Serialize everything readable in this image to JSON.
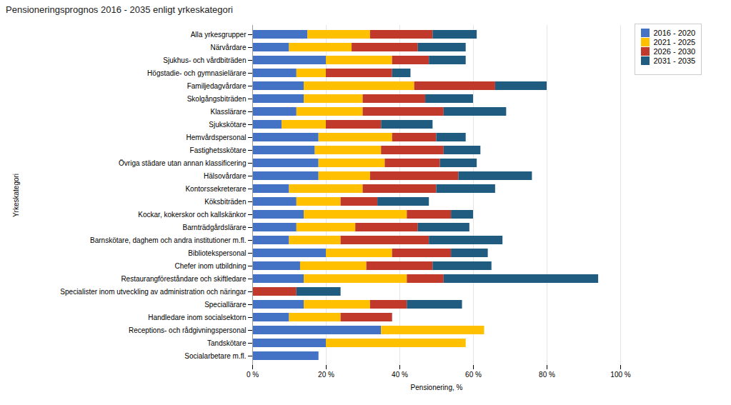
{
  "chart_data": {
    "type": "bar",
    "orientation": "horizontal",
    "stacked": true,
    "title": "Pensioneringsprognos 2016 - 2035 enligt yrkeskategori",
    "xlabel": "Pensionering, %",
    "ylabel": "Yrkeskategori",
    "categories": [
      "Alla yrkesgrupper",
      "Närvårdare",
      "Sjukhus- och vårdbiträden",
      "Högstadie- och gymnasielärare",
      "Familjedagvårdare",
      "Skolgångsbiträden",
      "Klasslärare",
      "Sjukskötare",
      "Hemvårdspersonal",
      "Fastighetsskötare",
      "Övriga städare utan annan klassificering",
      "Hälsovårdare",
      "Kontorssekreterare",
      "Köksbiträden",
      "Kockar, kokerskor och kallskänkor",
      "Barnträdgårdslärare",
      "Barnskötare, daghem och andra institutioner m.fl.",
      "Bibliotekspersonal",
      "Chefer inom utbildning",
      "Restaurangföreståndare och skiftledare",
      "Specialister inom utveckling av administration och näringar",
      "Speciallärare",
      "Handledare inom socialsektorn",
      "Receptions- och rådgivningspersonal",
      "Tandskötare",
      "Socialarbetare m.fl."
    ],
    "series": [
      {
        "name": "2016 - 2020",
        "color": "#4472C4",
        "values": [
          15,
          10,
          20,
          12,
          14,
          14,
          12,
          8,
          18,
          17,
          18,
          18,
          10,
          12,
          14,
          12,
          10,
          20,
          13,
          14,
          0,
          14,
          10,
          35,
          20,
          18
        ]
      },
      {
        "name": "2021 - 2025",
        "color": "#FFC000",
        "values": [
          17,
          17,
          18,
          8,
          30,
          16,
          18,
          12,
          20,
          18,
          18,
          14,
          20,
          12,
          28,
          16,
          14,
          18,
          18,
          28,
          0,
          18,
          14,
          28,
          38,
          0
        ]
      },
      {
        "name": "2026 - 2030",
        "color": "#C0392B",
        "values": [
          17,
          18,
          10,
          18,
          22,
          17,
          22,
          15,
          12,
          17,
          15,
          24,
          20,
          10,
          12,
          17,
          24,
          16,
          18,
          10,
          12,
          10,
          14,
          0,
          0,
          0
        ]
      },
      {
        "name": "2031 - 2035",
        "color": "#1F5C80",
        "values": [
          12,
          13,
          10,
          5,
          14,
          13,
          17,
          14,
          8,
          10,
          10,
          20,
          16,
          14,
          6,
          14,
          20,
          10,
          16,
          42,
          12,
          15,
          0,
          0,
          0,
          0
        ]
      }
    ],
    "xlim": [
      0,
      100
    ],
    "xticks": [
      {
        "value": 0,
        "label": "0 %"
      },
      {
        "value": 20,
        "label": "20 %"
      },
      {
        "value": 40,
        "label": "40 %"
      },
      {
        "value": 60,
        "label": "60 %"
      },
      {
        "value": 80,
        "label": "80 %"
      },
      {
        "value": 100,
        "label": "100 %"
      }
    ],
    "grid": true,
    "legend": "right"
  }
}
